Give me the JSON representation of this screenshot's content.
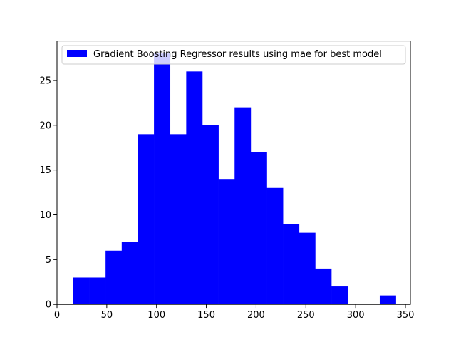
{
  "chart_data": {
    "type": "bar",
    "subtype": "histogram",
    "title": "",
    "xlabel": "",
    "ylabel": "",
    "xlim": [
      0,
      355
    ],
    "ylim": [
      0,
      29.4
    ],
    "x_ticks": [
      0,
      50,
      100,
      150,
      200,
      250,
      300,
      350
    ],
    "y_ticks": [
      0,
      5,
      10,
      15,
      20,
      25
    ],
    "grid": false,
    "legend_position": "top-left",
    "series": [
      {
        "name": "Gradient Boosting Regressor results using mae for best model",
        "color": "#0000ff",
        "bin_edges": [
          16.4,
          32.6,
          48.8,
          65.0,
          81.2,
          97.4,
          113.6,
          129.8,
          146.0,
          162.2,
          178.4,
          194.6,
          210.8,
          227.0,
          243.2,
          259.4,
          275.6,
          291.8,
          308.0,
          324.2,
          340.4
        ],
        "counts": [
          3,
          3,
          6,
          7,
          19,
          28,
          19,
          26,
          20,
          14,
          22,
          17,
          13,
          9,
          8,
          4,
          2,
          0,
          0,
          1
        ]
      }
    ]
  }
}
